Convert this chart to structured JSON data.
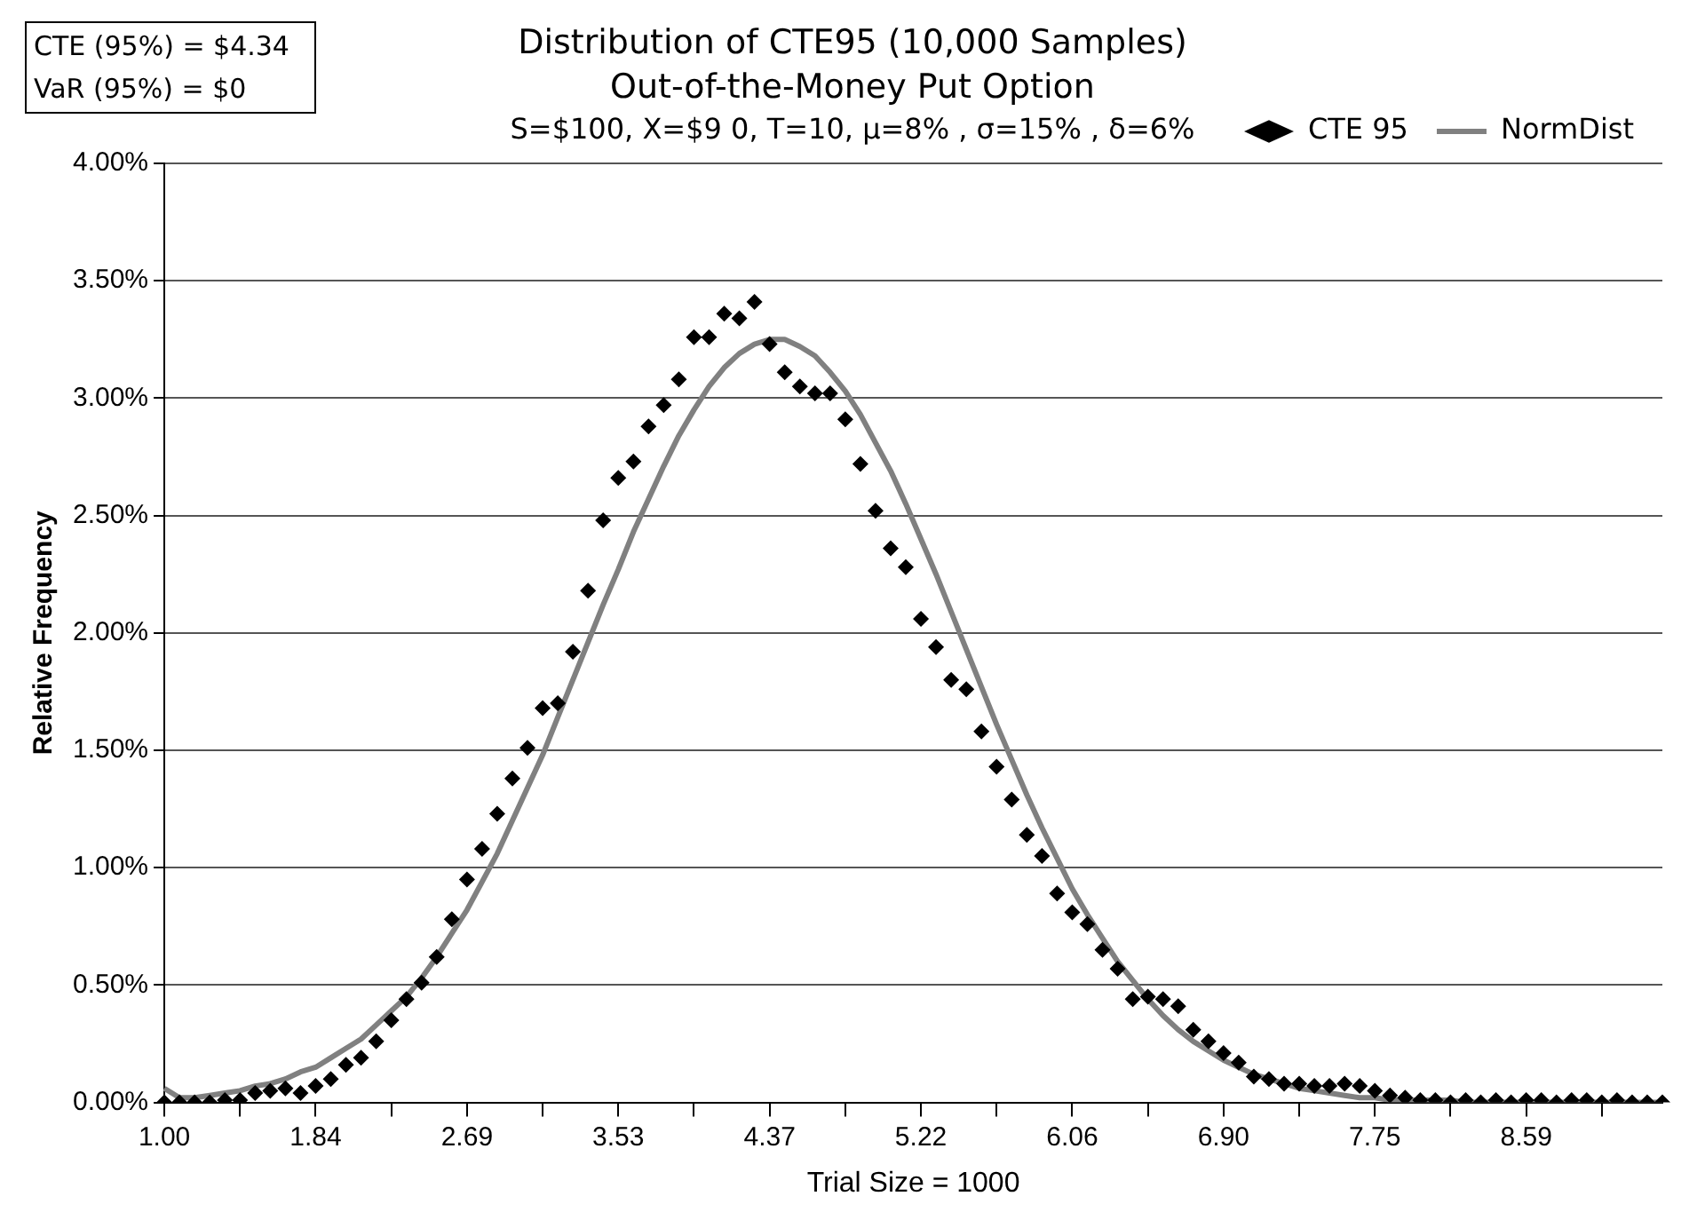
{
  "chart_data": {
    "type": "scatter",
    "title": "Distribution of CTE95 (10,000 Samples)",
    "subtitle": "Out-of-the-Money Put Option\nS=$100, X=$9 0, T=10, μ=8% , σ=15% , δ=6%",
    "annotations": [
      "CTE (95%) = $4.34",
      "VaR (95%) = $0"
    ],
    "xlabel": "Trial Size = 1000",
    "ylabel": "Relative Frequency",
    "categories": [
      "1.00",
      null,
      null,
      null,
      null,
      null,
      null,
      null,
      null,
      null,
      "1.84",
      null,
      null,
      null,
      null,
      null,
      null,
      null,
      null,
      null,
      "2.69",
      null,
      null,
      null,
      null,
      null,
      null,
      null,
      null,
      null,
      "3.53",
      null,
      null,
      null,
      null,
      null,
      null,
      null,
      null,
      null,
      "4.37",
      null,
      null,
      null,
      null,
      null,
      null,
      null,
      null,
      null,
      "5.22",
      null,
      null,
      null,
      null,
      null,
      null,
      null,
      null,
      null,
      "6.06",
      null,
      null,
      null,
      null,
      null,
      null,
      null,
      null,
      null,
      "6.90",
      null,
      null,
      null,
      null,
      null,
      null,
      null,
      null,
      null,
      "7.75",
      null,
      null,
      null,
      null,
      null,
      null,
      null,
      null,
      null,
      "8.59",
      null,
      null,
      null,
      null,
      null,
      null,
      null,
      null,
      null
    ],
    "series": [
      {
        "name": "CTE 95",
        "type": "scatter",
        "marker": "diamond",
        "color": "#000000",
        "values": [
          0.0,
          0.0,
          0.0,
          0.0,
          0.01,
          0.01,
          0.04,
          0.05,
          0.06,
          0.04,
          0.07,
          0.1,
          0.16,
          0.19,
          0.26,
          0.35,
          0.44,
          0.51,
          0.62,
          0.78,
          0.95,
          1.08,
          1.23,
          1.38,
          1.51,
          1.68,
          1.7,
          1.92,
          2.18,
          2.48,
          2.66,
          2.73,
          2.88,
          2.97,
          3.08,
          3.26,
          3.26,
          3.36,
          3.34,
          3.41,
          3.23,
          3.11,
          3.05,
          3.02,
          3.02,
          2.91,
          2.72,
          2.52,
          2.36,
          2.28,
          2.06,
          1.94,
          1.8,
          1.76,
          1.58,
          1.43,
          1.29,
          1.14,
          1.05,
          0.89,
          0.81,
          0.76,
          0.65,
          0.57,
          0.44,
          0.45,
          0.44,
          0.41,
          0.31,
          0.26,
          0.21,
          0.17,
          0.11,
          0.1,
          0.08,
          0.08,
          0.07,
          0.07,
          0.08,
          0.07,
          0.05,
          0.03,
          0.02,
          0.01,
          0.01,
          0.0,
          0.01,
          0.0,
          0.01,
          0.0,
          0.01,
          0.01,
          0.0,
          0.01,
          0.01,
          0.0,
          0.01,
          0.0,
          0.0,
          0.0
        ]
      },
      {
        "name": "NormDist",
        "type": "line",
        "marker": "none",
        "color": "#808080",
        "values": [
          0.06,
          0.02,
          0.02,
          0.03,
          0.04,
          0.05,
          0.07,
          0.08,
          0.1,
          0.13,
          0.15,
          0.19,
          0.23,
          0.27,
          0.33,
          0.39,
          0.45,
          0.53,
          0.62,
          0.72,
          0.82,
          0.94,
          1.06,
          1.2,
          1.34,
          1.48,
          1.64,
          1.8,
          1.96,
          2.12,
          2.27,
          2.43,
          2.57,
          2.71,
          2.84,
          2.95,
          3.05,
          3.13,
          3.19,
          3.23,
          3.25,
          3.25,
          3.22,
          3.18,
          3.11,
          3.03,
          2.93,
          2.81,
          2.69,
          2.55,
          2.4,
          2.25,
          2.09,
          1.93,
          1.77,
          1.61,
          1.46,
          1.31,
          1.17,
          1.04,
          0.91,
          0.8,
          0.7,
          0.6,
          0.52,
          0.44,
          0.37,
          0.31,
          0.26,
          0.22,
          0.18,
          0.15,
          0.12,
          0.1,
          0.08,
          0.06,
          0.05,
          0.04,
          0.03,
          0.02,
          0.02,
          0.01,
          0.01,
          0.01,
          0.01,
          0.01,
          0.0,
          0.0,
          0.0,
          0.0,
          0.0,
          0.0,
          0.0,
          0.0,
          0.0,
          0.0,
          0.0,
          0.0,
          0.0,
          0.0
        ]
      }
    ],
    "ylim": [
      0,
      4
    ],
    "yticks": [
      {
        "value": 0,
        "label": "0.00%"
      },
      {
        "value": 0.5,
        "label": "0.50%"
      },
      {
        "value": 1,
        "label": "1.00%"
      },
      {
        "value": 1.5,
        "label": "1.50%"
      },
      {
        "value": 2,
        "label": "2.00%"
      },
      {
        "value": 2.5,
        "label": "2.50%"
      },
      {
        "value": 3,
        "label": "3.00%"
      },
      {
        "value": 3.5,
        "label": "3.50%"
      },
      {
        "value": 4,
        "label": "4.00%"
      }
    ],
    "grid": "y",
    "legend": "top right"
  }
}
